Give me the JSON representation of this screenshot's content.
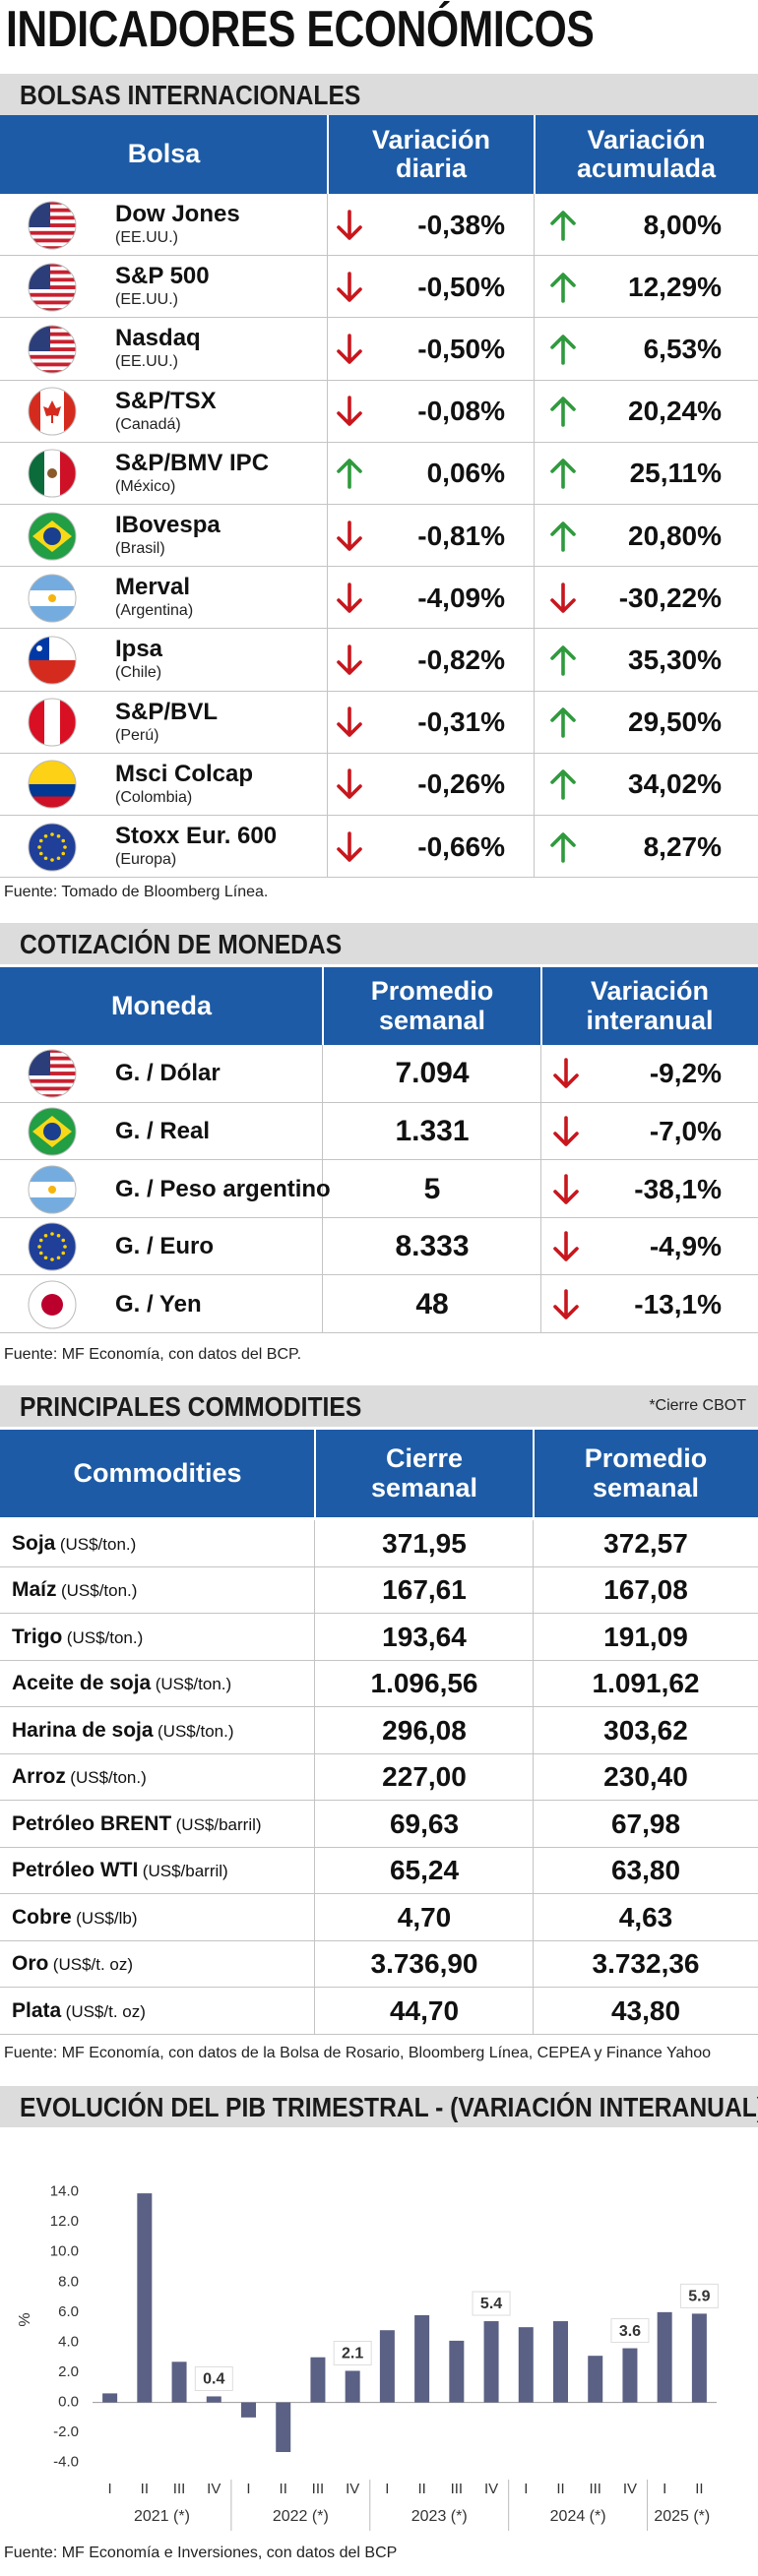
{
  "title": "INDICADORES ECONÓMICOS",
  "stocks": {
    "heading": "BOLSAS INTERNACIONALES",
    "columns": [
      "Bolsa",
      "Variación diaria",
      "Variación acumulada"
    ],
    "rows": [
      {
        "name": "Dow Jones",
        "country": "(EE.UU.)",
        "daily": "-0,38%",
        "accumulated": "8,00%"
      },
      {
        "name": "S&P 500",
        "country": "(EE.UU.)",
        "daily": "-0,50%",
        "accumulated": "12,29%"
      },
      {
        "name": "Nasdaq",
        "country": "(EE.UU.)",
        "daily": "-0,50%",
        "accumulated": "6,53%"
      },
      {
        "name": "S&P/TSX",
        "country": "(Canadá)",
        "daily": "-0,08%",
        "accumulated": "20,24%"
      },
      {
        "name": "S&P/BMV IPC",
        "country": "(México)",
        "daily": "0,06%",
        "accumulated": "25,11%"
      },
      {
        "name": "IBovespa",
        "country": "(Brasil)",
        "daily": "-0,81%",
        "accumulated": "20,80%"
      },
      {
        "name": "Merval",
        "country": "(Argentina)",
        "daily": "-4,09%",
        "accumulated": "-30,22%"
      },
      {
        "name": "Ipsa",
        "country": "(Chile)",
        "daily": "-0,82%",
        "accumulated": "35,30%"
      },
      {
        "name": "S&P/BVL",
        "country": "(Perú)",
        "daily": "-0,31%",
        "accumulated": "29,50%"
      },
      {
        "name": "Msci Colcap",
        "country": "(Colombia)",
        "daily": "-0,26%",
        "accumulated": "34,02%"
      },
      {
        "name": "Stoxx Eur. 600",
        "country": "(Europa)",
        "daily": "-0,66%",
        "accumulated": "8,27%"
      }
    ],
    "source": "Fuente: Tomado de Bloomberg Línea."
  },
  "currencies": {
    "heading": "COTIZACIÓN DE MONEDAS",
    "columns": [
      "Moneda",
      "Promedio semanal",
      "Variación interanual"
    ],
    "rows": [
      {
        "name": "G. / Dólar",
        "weekly": "7.094",
        "yoy": "-9,2%"
      },
      {
        "name": "G. / Real",
        "weekly": "1.331",
        "yoy": "-7,0%"
      },
      {
        "name": "G. / Peso argentino",
        "weekly": "5",
        "yoy": "-38,1%"
      },
      {
        "name": "G. / Euro",
        "weekly": "8.333",
        "yoy": "-4,9%"
      },
      {
        "name": "G. / Yen",
        "weekly": "48",
        "yoy": "-13,1%"
      }
    ],
    "source": "Fuente: MF Economía, con datos del BCP."
  },
  "commodities": {
    "heading": "PRINCIPALES COMMODITIES",
    "note": "*Cierre CBOT",
    "columns": [
      "Commodities",
      "Cierre semanal",
      "Promedio semanal"
    ],
    "rows": [
      {
        "name": "Soja",
        "unit": "(US$/ton.)",
        "close": "371,95",
        "average": "372,57"
      },
      {
        "name": "Maíz",
        "unit": "(US$/ton.)",
        "close": "167,61",
        "average": "167,08"
      },
      {
        "name": "Trigo",
        "unit": "(US$/ton.)",
        "close": "193,64",
        "average": "191,09"
      },
      {
        "name": "Aceite de soja",
        "unit": "(US$/ton.)",
        "close": "1.096,56",
        "average": "1.091,62"
      },
      {
        "name": "Harina de soja",
        "unit": "(US$/ton.)",
        "close": "296,08",
        "average": "303,62"
      },
      {
        "name": "Arroz",
        "unit": "(US$/ton.)",
        "close": "227,00",
        "average": "230,40"
      },
      {
        "name": "Petróleo BRENT",
        "unit": "(US$/barril)",
        "close": "69,63",
        "average": "67,98"
      },
      {
        "name": "Petróleo WTI",
        "unit": "(US$/barril)",
        "close": "65,24",
        "average": "63,80"
      },
      {
        "name": "Cobre",
        "unit": "(US$/lb)",
        "close": "4,70",
        "average": "4,63"
      },
      {
        "name": "Oro",
        "unit": "(US$/t. oz)",
        "close": "3.736,90",
        "average": "3.732,36"
      },
      {
        "name": "Plata",
        "unit": "(US$/t. oz)",
        "close": "44,70",
        "average": "43,80"
      }
    ],
    "source": "Fuente: MF Economía, con datos de la Bolsa de Rosario, Bloomberg Línea, CEPEA y Finance Yahoo"
  },
  "chart_data": {
    "type": "bar",
    "title": "EVOLUCIÓN DEL PIB TRIMESTRAL - (VARIACIÓN INTERANUAL)",
    "y_label": "%",
    "groups": [
      {
        "label": "2021 (*)",
        "categories": [
          "I",
          "II",
          "III",
          "IV"
        ]
      },
      {
        "label": "2022 (*)",
        "categories": [
          "I",
          "II",
          "III",
          "IV"
        ]
      },
      {
        "label": "2023 (*)",
        "categories": [
          "I",
          "II",
          "III",
          "IV"
        ]
      },
      {
        "label": "2024 (*)",
        "categories": [
          "I",
          "II",
          "III",
          "IV"
        ]
      },
      {
        "label": "2025 (*)",
        "categories": [
          "I",
          "II"
        ]
      }
    ],
    "values": [
      0.6,
      13.9,
      2.7,
      0.4,
      -1.0,
      -3.3,
      3.0,
      2.1,
      4.8,
      5.8,
      4.1,
      5.4,
      5.0,
      5.4,
      3.1,
      3.6,
      6.0,
      5.9
    ],
    "value_labels": [
      null,
      null,
      null,
      "0.4",
      null,
      null,
      null,
      "2.1",
      null,
      null,
      null,
      "5.4",
      null,
      null,
      null,
      "3.6",
      null,
      "5.9"
    ],
    "color": "#5b6184",
    "ylim": [
      -5,
      16
    ],
    "yticks": [
      {
        "value": -4,
        "label": "-4.0"
      },
      {
        "value": -2,
        "label": "-2.0"
      },
      {
        "value": 0,
        "label": "0.0"
      },
      {
        "value": 2,
        "label": "2.0"
      },
      {
        "value": 4,
        "label": "4.0"
      },
      {
        "value": 6,
        "label": "6.0"
      },
      {
        "value": 8,
        "label": "8.0"
      },
      {
        "value": 10,
        "label": "10.0"
      },
      {
        "value": 12,
        "label": "12.0"
      },
      {
        "value": 14,
        "label": "14.0"
      }
    ],
    "grid": false,
    "source": "Fuente: MF Economía e Inversiones, con datos del BCP"
  }
}
